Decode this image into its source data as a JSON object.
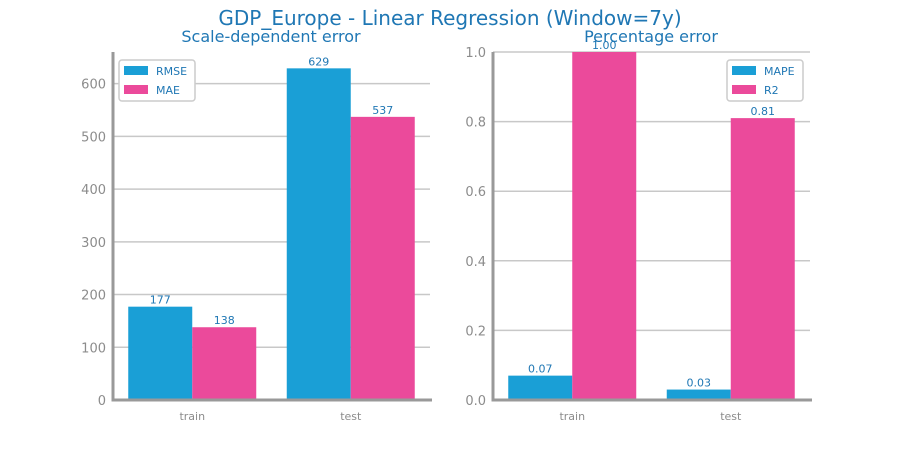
{
  "suptitle": "GDP_Europe - Linear Regression (Window=7y)",
  "colors": {
    "series1": "#1a9fd6",
    "series2": "#eb4a9b",
    "grid": "#c8c8c8",
    "axis": "#999999",
    "text": "#1f77b4",
    "tick": "#8c8c8c"
  },
  "chart_data": [
    {
      "type": "bar",
      "title": "Scale-dependent error",
      "categories": [
        "train",
        "test"
      ],
      "series": [
        {
          "name": "RMSE",
          "values": [
            177,
            629
          ],
          "labels": [
            "177",
            "629"
          ]
        },
        {
          "name": "MAE",
          "values": [
            138,
            537
          ],
          "labels": [
            "138",
            "537"
          ]
        }
      ],
      "ylim": [
        0,
        660
      ],
      "yticks": [
        0,
        100,
        200,
        300,
        400,
        500,
        600
      ],
      "ytick_labels": [
        "0",
        "100",
        "200",
        "300",
        "400",
        "500",
        "600"
      ],
      "grid": true,
      "legend": "top-left"
    },
    {
      "type": "bar",
      "title": "Percentage error",
      "categories": [
        "train",
        "test"
      ],
      "series": [
        {
          "name": "MAPE",
          "values": [
            0.07,
            0.03
          ],
          "labels": [
            "0.07",
            "0.03"
          ]
        },
        {
          "name": "R2",
          "values": [
            1.0,
            0.81
          ],
          "labels": [
            "1.00",
            "0.81"
          ]
        }
      ],
      "ylim": [
        0,
        1.0
      ],
      "yticks": [
        0,
        0.2,
        0.4,
        0.6,
        0.8,
        1.0
      ],
      "ytick_labels": [
        "0.0",
        "0.2",
        "0.4",
        "0.6",
        "0.8",
        "1.0"
      ],
      "grid": true,
      "legend": "top-right"
    }
  ]
}
